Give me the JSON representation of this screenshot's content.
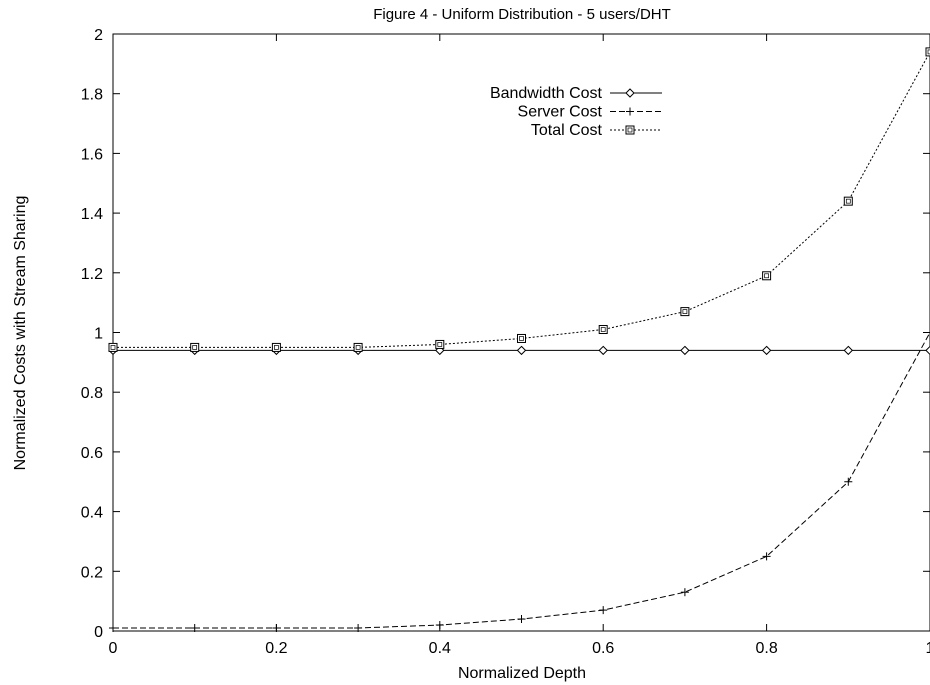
{
  "chart_data": {
    "type": "line",
    "title": "Figure 4 - Uniform Distribution - 5 users/DHT",
    "xlabel": "Normalized Depth",
    "ylabel": "Normalized Costs with Stream Sharing",
    "xlim": [
      0,
      1
    ],
    "ylim": [
      0,
      2
    ],
    "x_ticks": [
      "0",
      "0.2",
      "0.4",
      "0.6",
      "0.8",
      "1"
    ],
    "y_ticks": [
      "0",
      "0.2",
      "0.4",
      "0.6",
      "0.8",
      "1",
      "1.2",
      "1.4",
      "1.6",
      "1.8",
      "2"
    ],
    "x_tick_values": [
      0,
      0.2,
      0.4,
      0.6,
      0.8,
      1
    ],
    "y_tick_values": [
      0,
      0.2,
      0.4,
      0.6,
      0.8,
      1,
      1.2,
      1.4,
      1.6,
      1.8,
      2
    ],
    "grid": false,
    "legend_position": "top-center",
    "x": [
      0,
      0.1,
      0.2,
      0.3,
      0.4,
      0.5,
      0.6,
      0.7,
      0.8,
      0.9,
      1.0
    ],
    "series": [
      {
        "name": "Bandwidth Cost",
        "marker": "diamond",
        "line": "solid",
        "values": [
          0.94,
          0.94,
          0.94,
          0.94,
          0.94,
          0.94,
          0.94,
          0.94,
          0.94,
          0.94,
          0.94
        ]
      },
      {
        "name": "Server Cost",
        "marker": "plus",
        "line": "dashed",
        "values": [
          0.01,
          0.01,
          0.01,
          0.01,
          0.02,
          0.04,
          0.07,
          0.13,
          0.25,
          0.5,
          1.0
        ]
      },
      {
        "name": "Total Cost",
        "marker": "square",
        "line": "dotted",
        "values": [
          0.95,
          0.95,
          0.95,
          0.95,
          0.96,
          0.98,
          1.01,
          1.07,
          1.19,
          1.44,
          1.94
        ]
      }
    ]
  }
}
